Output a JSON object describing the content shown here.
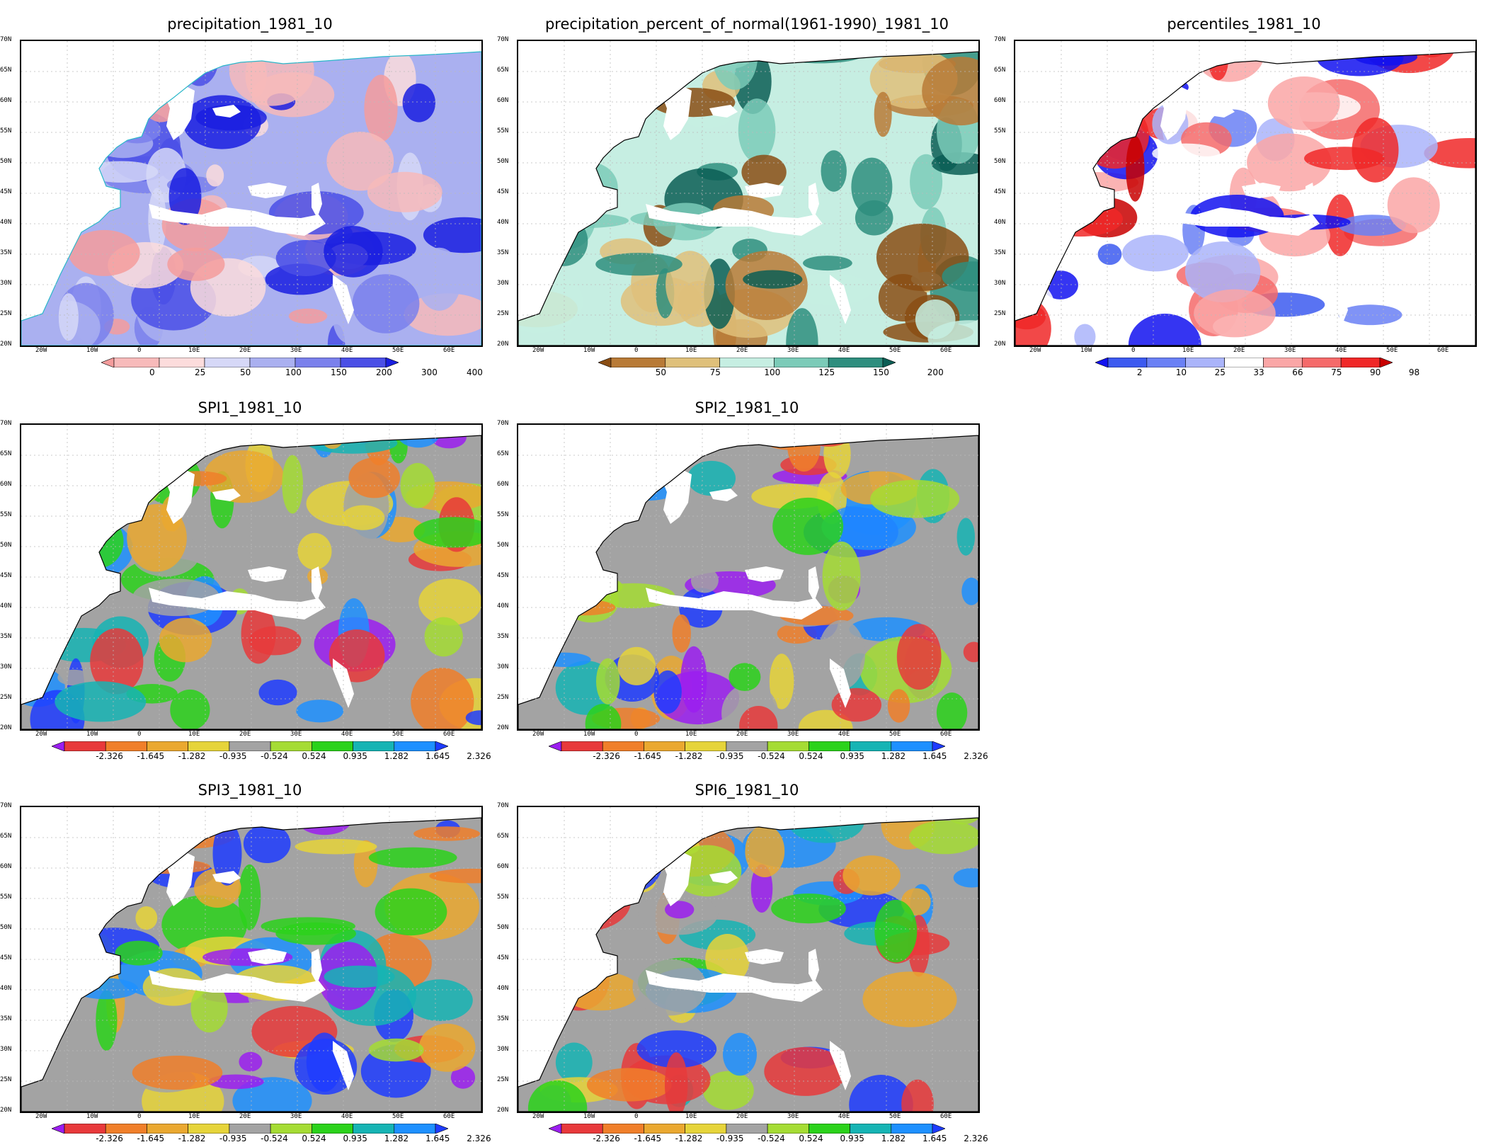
{
  "grid_lat_labels": [
    "70N",
    "65N",
    "60N",
    "55N",
    "50N",
    "45N",
    "40N",
    "35N",
    "30N",
    "25N",
    "20N"
  ],
  "grid_lon_labels": [
    "20W",
    "10W",
    "0",
    "10E",
    "20E",
    "30E",
    "40E",
    "50E",
    "60E"
  ],
  "colors": {
    "spi": [
      "#9b1ef0",
      "#e8393b",
      "#f07f2a",
      "#eaa830",
      "#e6d43a",
      "#a3a3a3",
      "#a5dc34",
      "#2bd21b",
      "#16b4b4",
      "#1e90ff",
      "#1e3cff"
    ],
    "pct_normal": [
      "#8a4e14",
      "#b87a36",
      "#dfc07a",
      "#c6eee2",
      "#7bcbb8",
      "#2e8e7e",
      "#0b5e55"
    ],
    "percentiles": [
      "#1212f0",
      "#3c5af0",
      "#6a80f5",
      "#aab4fa",
      "#ffffff",
      "#faa6a6",
      "#f56a6a",
      "#f02828",
      "#c80000"
    ],
    "precip": [
      "#f49c9c",
      "#f7baba",
      "#fcdcdc",
      "#d6d8f7",
      "#aab0f0",
      "#7a80ec",
      "#4a4fe6",
      "#1a1fe0"
    ]
  },
  "panels": [
    {
      "title": "precipitation_1981_10",
      "palette": "precip",
      "colorbar_labels": [
        "0",
        "25",
        "50",
        "100",
        "150",
        "200",
        "300",
        "400"
      ]
    },
    {
      "title": "precipitation_percent_of_normal(1961-1990)_1981_10",
      "palette": "pct_normal",
      "colorbar_labels": [
        "50",
        "75",
        "100",
        "125",
        "150",
        "200"
      ]
    },
    {
      "title": "percentiles_1981_10",
      "palette": "percentiles",
      "colorbar_labels": [
        "2",
        "10",
        "25",
        "33",
        "66",
        "75",
        "90",
        "98"
      ]
    },
    {
      "title": "SPI1_1981_10",
      "palette": "spi",
      "colorbar_labels": [
        "-2.326",
        "-1.645",
        "-1.282",
        "-0.935",
        "-0.524",
        "0.524",
        "0.935",
        "1.282",
        "1.645",
        "2.326"
      ]
    },
    {
      "title": "SPI2_1981_10",
      "palette": "spi",
      "colorbar_labels": [
        "-2.326",
        "-1.645",
        "-1.282",
        "-0.935",
        "-0.524",
        "0.524",
        "0.935",
        "1.282",
        "1.645",
        "2.326"
      ]
    },
    {
      "title": "SPI3_1981_10",
      "palette": "spi",
      "colorbar_labels": [
        "-2.326",
        "-1.645",
        "-1.282",
        "-0.935",
        "-0.524",
        "0.524",
        "0.935",
        "1.282",
        "1.645",
        "2.326"
      ]
    },
    {
      "title": "SPI6_1981_10",
      "palette": "spi",
      "colorbar_labels": [
        "-2.326",
        "-1.645",
        "-1.282",
        "-0.935",
        "-0.524",
        "0.524",
        "0.935",
        "1.282",
        "1.645",
        "2.326"
      ]
    }
  ]
}
